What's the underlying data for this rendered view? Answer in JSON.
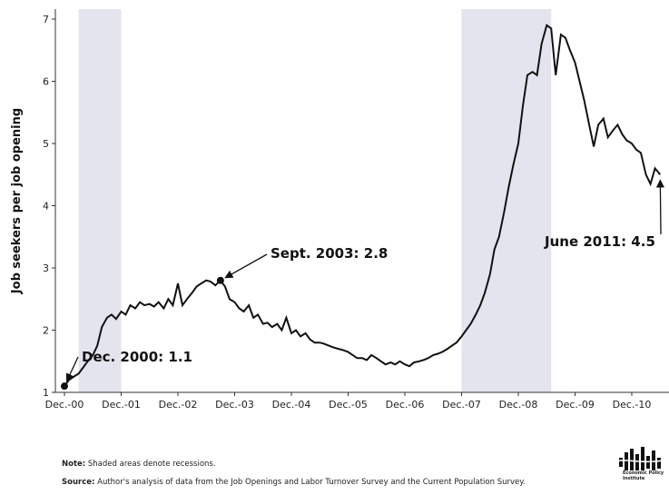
{
  "chart_data": {
    "type": "line",
    "title": "",
    "xlabel": "",
    "ylabel": "Job seekers per job opening",
    "xlim": [
      2000.88,
      2010.95
    ],
    "ylim": [
      1,
      7.2
    ],
    "y_ticks": [
      1,
      2,
      3,
      4,
      5,
      6,
      7
    ],
    "x_ticks": [
      {
        "label": "Dec.-00",
        "x": 2000.92
      },
      {
        "label": "Dec.-01",
        "x": 2001.92
      },
      {
        "label": "Dec.-02",
        "x": 2002.92
      },
      {
        "label": "Dec.-03",
        "x": 2003.92
      },
      {
        "label": "Dec.-04",
        "x": 2004.92
      },
      {
        "label": "Dec.-05",
        "x": 2005.92
      },
      {
        "label": "Dec.-06",
        "x": 2006.92
      },
      {
        "label": "Dec.-07",
        "x": 2007.92
      },
      {
        "label": "Dec.-08",
        "x": 2008.92
      },
      {
        "label": "Dec.-09",
        "x": 2009.92
      },
      {
        "label": "Dec.-10",
        "x": 2010.92
      }
    ],
    "grid": false,
    "recessions": [
      {
        "start": 2001.17,
        "end": 2001.92
      },
      {
        "start": 2007.92,
        "end": 2009.5
      }
    ],
    "series": [
      {
        "name": "",
        "color": "#111111",
        "x": [
          2000.92,
          2001.0,
          2001.08,
          2001.17,
          2001.25,
          2001.33,
          2001.42,
          2001.5,
          2001.58,
          2001.67,
          2001.75,
          2001.83,
          2001.92,
          2002.0,
          2002.08,
          2002.17,
          2002.25,
          2002.33,
          2002.42,
          2002.5,
          2002.58,
          2002.67,
          2002.75,
          2002.83,
          2002.92,
          2003.0,
          2003.08,
          2003.17,
          2003.25,
          2003.33,
          2003.42,
          2003.5,
          2003.58,
          2003.67,
          2003.75,
          2003.83,
          2003.92,
          2004.0,
          2004.08,
          2004.17,
          2004.25,
          2004.33,
          2004.42,
          2004.5,
          2004.58,
          2004.67,
          2004.75,
          2004.83,
          2004.92,
          2005.0,
          2005.08,
          2005.17,
          2005.25,
          2005.33,
          2005.42,
          2005.5,
          2005.58,
          2005.67,
          2005.75,
          2005.83,
          2005.92,
          2006.0,
          2006.08,
          2006.17,
          2006.25,
          2006.33,
          2006.42,
          2006.5,
          2006.58,
          2006.67,
          2006.75,
          2006.83,
          2006.92,
          2007.0,
          2007.08,
          2007.17,
          2007.25,
          2007.33,
          2007.42,
          2007.5,
          2007.58,
          2007.67,
          2007.75,
          2007.83,
          2007.92,
          2008.0,
          2008.08,
          2008.17,
          2008.25,
          2008.33,
          2008.42,
          2008.5,
          2008.58,
          2008.67,
          2008.75,
          2008.83,
          2008.92,
          2009.0,
          2009.08,
          2009.17,
          2009.25,
          2009.33,
          2009.42,
          2009.5,
          2009.58,
          2009.67,
          2009.75,
          2009.83,
          2009.92,
          2010.0,
          2010.08,
          2010.17,
          2010.25,
          2010.33,
          2010.42,
          2010.5,
          2010.58,
          2010.67,
          2010.75,
          2010.83,
          2010.92,
          2011.0,
          2011.08,
          2011.17,
          2011.25,
          2011.33,
          2011.42
        ],
        "values": [
          1.1,
          1.2,
          1.25,
          1.3,
          1.4,
          1.5,
          1.6,
          1.75,
          2.05,
          2.2,
          2.25,
          2.18,
          2.3,
          2.25,
          2.4,
          2.35,
          2.45,
          2.4,
          2.42,
          2.38,
          2.45,
          2.35,
          2.5,
          2.4,
          2.75,
          2.4,
          2.5,
          2.6,
          2.7,
          2.75,
          2.8,
          2.78,
          2.72,
          2.8,
          2.7,
          2.5,
          2.45,
          2.35,
          2.3,
          2.4,
          2.2,
          2.25,
          2.1,
          2.12,
          2.05,
          2.1,
          2.0,
          2.2,
          1.95,
          2.0,
          1.9,
          1.95,
          1.85,
          1.8,
          1.8,
          1.78,
          1.75,
          1.72,
          1.7,
          1.68,
          1.65,
          1.6,
          1.55,
          1.55,
          1.52,
          1.6,
          1.55,
          1.5,
          1.45,
          1.48,
          1.45,
          1.5,
          1.45,
          1.42,
          1.48,
          1.5,
          1.52,
          1.55,
          1.6,
          1.62,
          1.65,
          1.7,
          1.75,
          1.8,
          1.9,
          2.0,
          2.1,
          2.25,
          2.4,
          2.6,
          2.9,
          3.3,
          3.5,
          3.9,
          4.3,
          4.65,
          5.0,
          5.6,
          6.1,
          6.15,
          6.1,
          6.6,
          6.9,
          6.85,
          6.1,
          6.75,
          6.7,
          6.5,
          6.3,
          6.0,
          5.7,
          5.3,
          4.95,
          5.3,
          5.4,
          5.1,
          5.2,
          5.3,
          5.15,
          5.05,
          5.0,
          4.9,
          4.85,
          4.5,
          4.35,
          4.6,
          4.5
        ]
      }
    ],
    "annotations": [
      {
        "text": "Dec. 2000: 1.1",
        "x": 2000.92,
        "y": 1.1
      },
      {
        "text": "Sept. 2003: 2.8",
        "x": 2003.67,
        "y": 2.8
      },
      {
        "text": "June 2011: 4.5",
        "x": 2011.42,
        "y": 4.5
      }
    ]
  },
  "footer": {
    "note_label": "Note:",
    "note_text": "Shaded areas denote recessions.",
    "source_label": "Source:",
    "source_text": "Author's analysis of data from the Job Openings and Labor Turnover Survey and the Current Population Survey."
  },
  "logo": {
    "text": "Economic Policy Institute"
  }
}
